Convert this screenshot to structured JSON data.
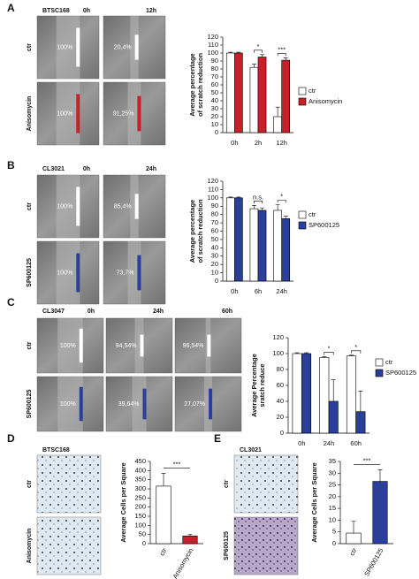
{
  "panels": [
    {
      "letter": "A",
      "cell_line": "BTSC168",
      "times": [
        "0h",
        "12h"
      ],
      "rows": [
        "ctr",
        "Anisomycin"
      ],
      "image_labels": [
        [
          "100%",
          "20,4%"
        ],
        [
          "100%",
          "91,25%"
        ]
      ]
    },
    {
      "letter": "B",
      "cell_line": "CL3021",
      "times": [
        "0h",
        "24h"
      ],
      "rows": [
        "ctr",
        "SP600125"
      ],
      "image_labels": [
        [
          "100%",
          "85,4%"
        ],
        [
          "100%",
          "73,7%"
        ]
      ]
    },
    {
      "letter": "C",
      "cell_line": "CL3047",
      "times": [
        "0h",
        "24h",
        "60h"
      ],
      "rows": [
        "ctr",
        "SP600125"
      ],
      "image_labels": [
        [
          "100%",
          "94,54%",
          "96,54%"
        ],
        [
          "100%",
          "39,64%",
          "27,07%"
        ]
      ]
    },
    {
      "letter": "D",
      "cell_line": "BTSC168",
      "rows": [
        "ctr",
        "Anisomycin"
      ]
    },
    {
      "letter": "E",
      "cell_line": "CL3021",
      "rows": [
        "ctr",
        "SP600125"
      ]
    }
  ],
  "chart_data": [
    {
      "type": "bar",
      "y_label": [
        "Average percentage",
        "of scratch reduction"
      ],
      "categories": [
        "0h",
        "2h",
        "12h"
      ],
      "series": [
        {
          "name": "ctr",
          "color": "#ffffff",
          "values": [
            100,
            82,
            20
          ],
          "errors": [
            1,
            4,
            12
          ]
        },
        {
          "name": "Anisomycin",
          "color": "#c8202a",
          "values": [
            100,
            95,
            91
          ],
          "errors": [
            1,
            3,
            3
          ]
        }
      ],
      "ylim": [
        0,
        120
      ],
      "yticks": [
        0,
        10,
        20,
        30,
        40,
        50,
        60,
        70,
        80,
        90,
        100,
        110,
        120
      ],
      "significance": [
        null,
        "*",
        "***"
      ]
    },
    {
      "type": "bar",
      "y_label": [
        "Average percentage",
        "of scratch reduction"
      ],
      "categories": [
        "0h",
        "6h",
        "24h"
      ],
      "series": [
        {
          "name": "ctr",
          "color": "#ffffff",
          "values": [
            100,
            87,
            85
          ],
          "errors": [
            1,
            4,
            7
          ]
        },
        {
          "name": "SP600125",
          "color": "#2a3f9a",
          "values": [
            100,
            85,
            75
          ],
          "errors": [
            1,
            3,
            3
          ]
        }
      ],
      "ylim": [
        0,
        120
      ],
      "yticks": [
        0,
        10,
        20,
        30,
        40,
        50,
        60,
        70,
        80,
        90,
        100,
        110,
        120
      ],
      "significance": [
        null,
        "n.s.",
        "*"
      ]
    },
    {
      "type": "bar",
      "y_label": [
        "Average Percentage",
        "sratch reduce"
      ],
      "categories": [
        "0h",
        "24h",
        "60h"
      ],
      "series": [
        {
          "name": "ctr",
          "color": "#ffffff",
          "values": [
            100,
            95,
            97
          ],
          "errors": [
            1,
            1,
            1
          ]
        },
        {
          "name": "SP600125",
          "color": "#2a3f9a",
          "values": [
            100,
            40,
            27
          ],
          "errors": [
            1,
            27,
            26
          ]
        }
      ],
      "ylim": [
        0,
        120
      ],
      "yticks": [
        0,
        20,
        40,
        60,
        80,
        100,
        120
      ],
      "significance": [
        null,
        "*",
        "*"
      ]
    },
    {
      "type": "bar",
      "y_label": [
        "Average Cells per Square"
      ],
      "categories": [
        "ctr",
        "Anisomycin"
      ],
      "series": [
        {
          "colors": [
            "#ffffff",
            "#c8202a"
          ],
          "values": [
            315,
            42
          ],
          "errors": [
            70,
            10
          ]
        }
      ],
      "ylim": [
        0,
        450
      ],
      "yticks": [
        0,
        50,
        100,
        150,
        200,
        250,
        300,
        350,
        400,
        450
      ],
      "significance_label": "***"
    },
    {
      "type": "bar",
      "y_label": [
        "Average Cells per Square"
      ],
      "categories": [
        "ctr",
        "SP600125"
      ],
      "series": [
        {
          "colors": [
            "#ffffff",
            "#2a3f9a"
          ],
          "values": [
            4.5,
            26.5
          ],
          "errors": [
            5,
            5
          ]
        }
      ],
      "ylim": [
        0,
        35
      ],
      "yticks": [
        0,
        5,
        10,
        15,
        20,
        25,
        30,
        35
      ],
      "significance_label": "***"
    }
  ]
}
